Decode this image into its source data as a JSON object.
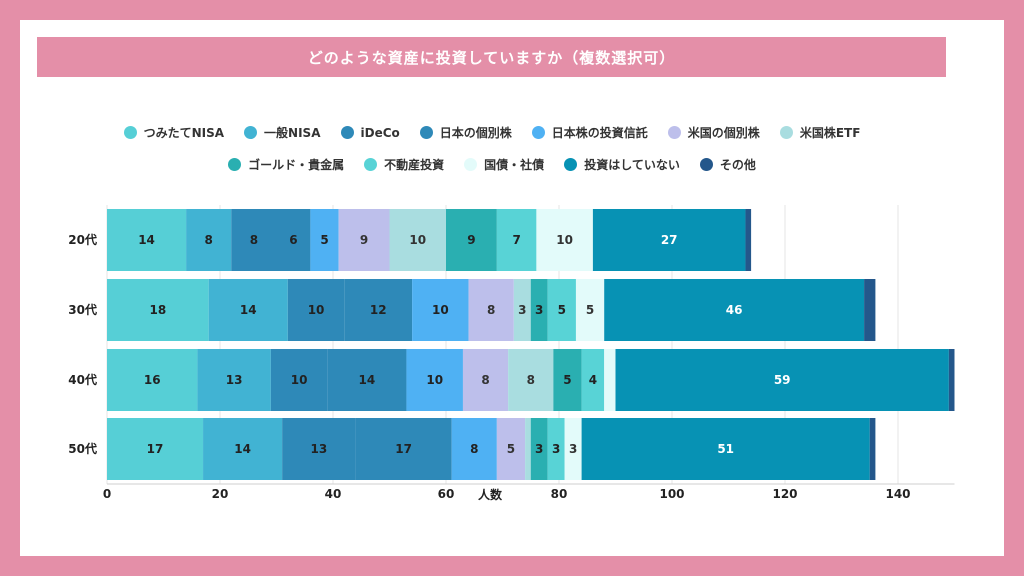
{
  "chart_data": {
    "type": "bar",
    "orientation": "horizontal",
    "stacked": true,
    "title": "どのような資産に投資していますか（複数選択可）",
    "xlabel": "人数",
    "ylabel": "",
    "xlim": [
      0,
      150
    ],
    "xticks": [
      0,
      20,
      40,
      60,
      80,
      100,
      120,
      140
    ],
    "grid": true,
    "legend_position": "top",
    "categories": [
      "20代",
      "30代",
      "40代",
      "50代"
    ],
    "series": [
      {
        "name": "つみたてNISA",
        "color": "#56cfd6",
        "values": [
          14,
          18,
          16,
          17
        ]
      },
      {
        "name": "一般NISA",
        "color": "#41b3d3",
        "values": [
          8,
          14,
          13,
          14
        ]
      },
      {
        "name": "iDeCo",
        "color": "#2e89b8",
        "values": [
          8,
          10,
          10,
          13
        ]
      },
      {
        "name": "日本の個別株",
        "color": "#2e89b8",
        "values": [
          6,
          12,
          14,
          17
        ]
      },
      {
        "name": "日本株の投資信託",
        "color": "#4fb1f3",
        "values": [
          5,
          10,
          10,
          8
        ]
      },
      {
        "name": "米国の個別株",
        "color": "#bdbfeb",
        "values": [
          9,
          8,
          8,
          5
        ]
      },
      {
        "name": "米国株ETF",
        "color": "#a9dde0",
        "values": [
          10,
          3,
          8,
          1
        ]
      },
      {
        "name": "ゴールド・貴金属",
        "color": "#2aafb1",
        "values": [
          9,
          3,
          5,
          3
        ]
      },
      {
        "name": "不動産投資",
        "color": "#58d3d6",
        "values": [
          7,
          5,
          4,
          3
        ]
      },
      {
        "name": "国債・社債",
        "color": "#e3fbfa",
        "values": [
          10,
          5,
          2,
          3
        ]
      },
      {
        "name": "投資はしていない",
        "color": "#0792b4",
        "values": [
          27,
          46,
          59,
          51
        ]
      },
      {
        "name": "その他",
        "color": "#24578b",
        "values": [
          1,
          2,
          1,
          1
        ]
      }
    ],
    "segment_labels": [
      [
        "14",
        "8",
        "8",
        "6",
        "5",
        "9",
        "10",
        "9",
        "7",
        "10",
        "27",
        ""
      ],
      [
        "18",
        "14",
        "10",
        "12",
        "10",
        "8",
        "3",
        "3",
        "5",
        "5",
        "46",
        ""
      ],
      [
        "16",
        "13",
        "10",
        "14",
        "10",
        "8",
        "8",
        "5",
        "4",
        "",
        "59",
        ""
      ],
      [
        "17",
        "14",
        "13",
        "17",
        "8",
        "5",
        "",
        "3",
        "3",
        "3",
        "51",
        ""
      ]
    ]
  }
}
